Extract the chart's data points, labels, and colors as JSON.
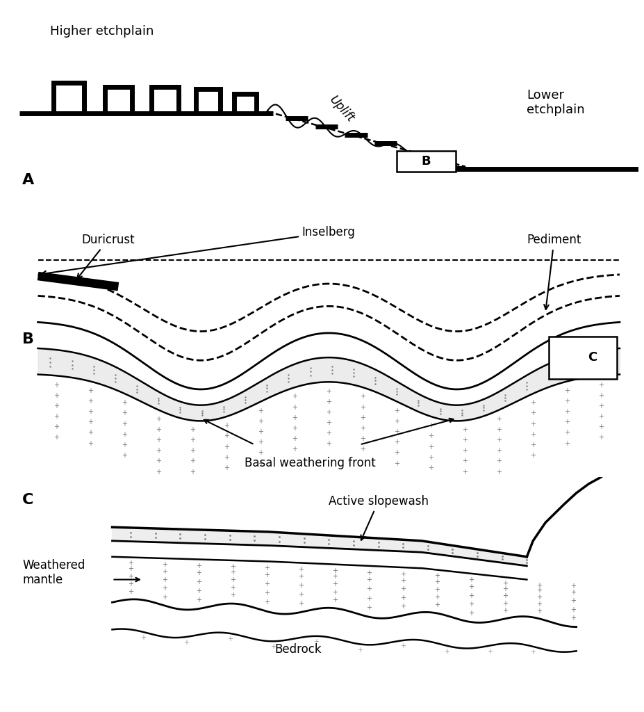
{
  "bg_color": "#ffffff",
  "line_color": "#000000",
  "panel_A_label": "A",
  "panel_B_label": "B",
  "panel_C_label": "C",
  "label_higher_etchplain": "Higher etchplain",
  "label_lower_etchplain": "Lower\netchplain",
  "label_uplift": "Uplift",
  "label_duricrust": "Duricrust",
  "label_inselberg": "Inselberg",
  "label_pediment": "Pediment",
  "label_basal_weathering": "Basal weathering front",
  "label_active_slopewash": "Active slopewash",
  "label_weathered_mantle": "Weathered\nmantle",
  "label_bedrock": "Bedrock"
}
